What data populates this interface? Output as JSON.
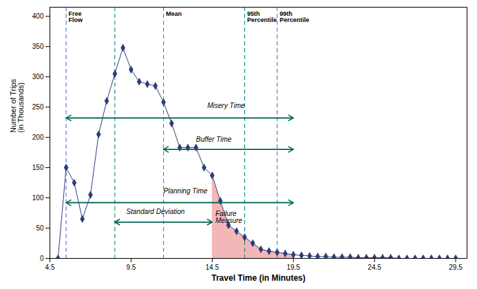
{
  "chart_data": {
    "type": "line",
    "xlabel": "Travel Time (in Minutes)",
    "ylabel": "Number of Trips\n(in Thousands)",
    "xlim": [
      4.5,
      30.2
    ],
    "ylim": [
      0,
      415
    ],
    "xticks": [
      4.5,
      9.5,
      14.5,
      19.5,
      24.5,
      29.5
    ],
    "yticks": [
      0,
      50,
      100,
      150,
      200,
      250,
      300,
      350,
      400
    ],
    "grid": false,
    "x": [
      5.0,
      5.5,
      6.0,
      6.5,
      7.0,
      7.5,
      8.0,
      8.5,
      9.0,
      9.5,
      10.0,
      10.5,
      11.0,
      11.5,
      12.0,
      12.5,
      13.0,
      13.5,
      14.0,
      14.5,
      15.0,
      15.5,
      16.0,
      16.5,
      17.0,
      17.5,
      18.0,
      18.5,
      19.0,
      19.5,
      20.0,
      20.5,
      21.0,
      21.5,
      22.0,
      22.5,
      23.0,
      23.5,
      24.0,
      24.5,
      25.0,
      25.5,
      26.0,
      26.5,
      27.0,
      27.5,
      28.0,
      28.5,
      29.0,
      29.5
    ],
    "y": [
      0,
      150,
      125,
      65,
      105,
      205,
      260,
      305,
      348,
      312,
      292,
      288,
      285,
      258,
      223,
      183,
      183,
      183,
      150,
      137,
      95,
      55,
      45,
      35,
      25,
      15,
      12,
      10,
      8,
      6,
      5,
      4,
      3,
      3,
      2,
      2,
      2,
      1,
      1,
      1,
      1,
      1,
      0,
      0,
      0,
      0,
      0,
      0,
      0,
      0
    ],
    "color": "#2d3d7a",
    "marker": "diamond",
    "fill": {
      "x_start": 14.5,
      "x_end": 19.5,
      "color": "#f2aaaa",
      "label": "Failure\nMeasure",
      "label_x": 14.7,
      "label_y": 68
    },
    "vlines": [
      {
        "x": 5.5,
        "color": "#5577bb",
        "line_style": "dashed",
        "label": "Free\nFlow",
        "label_x": 5.65,
        "label_y": 408
      },
      {
        "x": 8.5,
        "color": "#008878",
        "line_style": "dashed"
      },
      {
        "x": 11.5,
        "color": "#5577bb",
        "line_style": "dashed",
        "label": "Mean",
        "label_x": 11.65,
        "label_y": 408
      },
      {
        "x": 16.5,
        "color": "#008878",
        "line_style": "dashed",
        "label": "95th\nPercentile",
        "label_x": 16.65,
        "label_y": 408
      },
      {
        "x": 18.5,
        "color": "#5577bb",
        "line_style": "dashed",
        "label": "99th\nPercentile",
        "label_x": 18.65,
        "label_y": 408
      }
    ],
    "arrows": [
      {
        "label": "Misery Time",
        "x_start": 5.5,
        "x_end": 19.5,
        "y": 232,
        "label_x": 14.2,
        "label_y": 248,
        "color": "#006655"
      },
      {
        "label": "Buffer Time",
        "x_start": 11.5,
        "x_end": 19.5,
        "y": 180,
        "label_x": 13.5,
        "label_y": 193,
        "color": "#006655"
      },
      {
        "label": "Planning Time",
        "x_start": 5.5,
        "x_end": 19.5,
        "y": 92,
        "label_x": 11.5,
        "label_y": 107,
        "color": "#006655"
      },
      {
        "label": "Standard Deviation",
        "x_start": 8.5,
        "x_end": 14.5,
        "y": 60,
        "label_x": 9.2,
        "label_y": 73,
        "color": "#006655"
      }
    ]
  }
}
